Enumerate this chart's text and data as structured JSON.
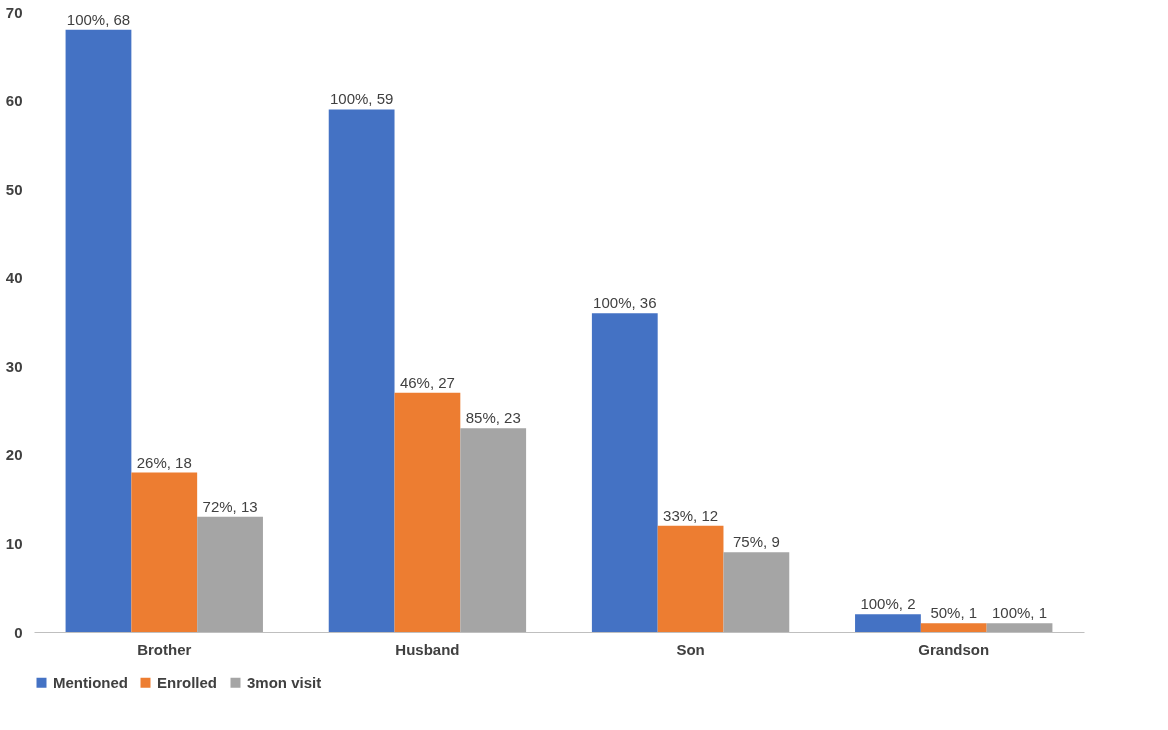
{
  "chart_data": {
    "type": "bar",
    "categories": [
      "Brother",
      "Husband",
      "Son",
      "Grandson"
    ],
    "series": [
      {
        "name": "Mentioned",
        "color": "#4472c4",
        "values": [
          68,
          59,
          36,
          2
        ],
        "value_labels": [
          "100%, 68",
          "100%, 59",
          "100%, 36",
          "100%, 2"
        ]
      },
      {
        "name": "Enrolled",
        "color": "#ed7d31",
        "values": [
          18,
          27,
          12,
          1
        ],
        "value_labels": [
          "26%, 18",
          "46%, 27",
          "33%, 12",
          "50%, 1"
        ]
      },
      {
        "name": "3mon visit",
        "color": "#a5a5a5",
        "values": [
          13,
          23,
          9,
          1
        ],
        "value_labels": [
          "72%, 13",
          "85%, 23",
          "75%, 9",
          "100%, 1"
        ]
      }
    ],
    "ylim": [
      0,
      70
    ],
    "yticks": [
      0,
      10,
      20,
      30,
      40,
      50,
      60,
      70
    ],
    "grid": false,
    "legend": "bottom"
  }
}
